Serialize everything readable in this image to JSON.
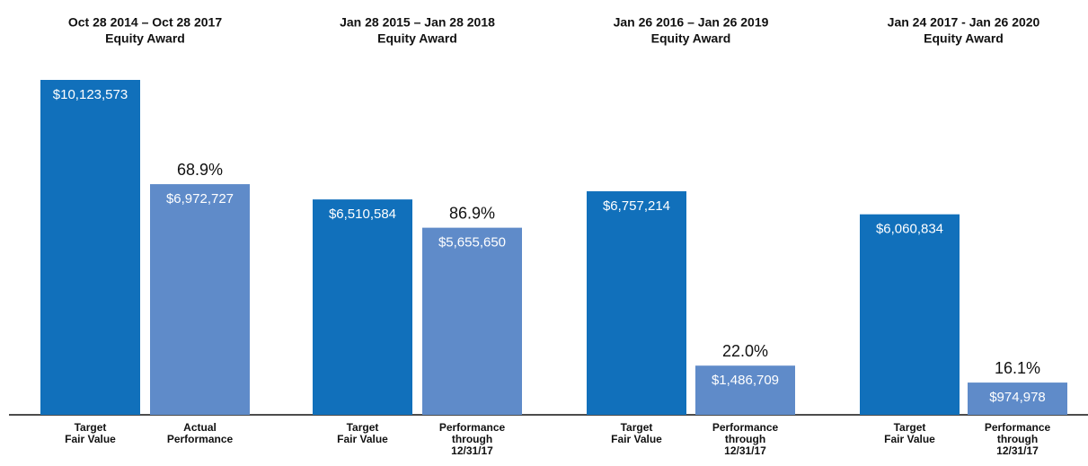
{
  "chart_data": [
    {
      "type": "bar",
      "title": [
        "Oct 28 2014 – Oct 28 2017",
        "Equity Award"
      ],
      "categories": [
        [
          "Target",
          "Fair Value"
        ],
        [
          "Actual",
          "Performance"
        ]
      ],
      "values": [
        10123573,
        6972727
      ],
      "value_labels": [
        "$10,123,573",
        "$6,972,727"
      ],
      "colors": [
        "#1170bb",
        "#5f8bc9"
      ],
      "percent": {
        "value": 68.9,
        "label": "68.9%"
      }
    },
    {
      "type": "bar",
      "title": [
        "Jan 28 2015 – Jan 28 2018",
        "Equity Award"
      ],
      "categories": [
        [
          "Target",
          "Fair Value"
        ],
        [
          "Performance",
          "through",
          "12/31/17"
        ]
      ],
      "values": [
        6510584,
        5655650
      ],
      "value_labels": [
        "$6,510,584",
        "$5,655,650"
      ],
      "colors": [
        "#1170bb",
        "#5f8bc9"
      ],
      "percent": {
        "value": 86.9,
        "label": "86.9%"
      }
    },
    {
      "type": "bar",
      "title": [
        "Jan 26 2016 – Jan 26 2019",
        "Equity Award"
      ],
      "categories": [
        [
          "Target",
          "Fair Value"
        ],
        [
          "Performance",
          "through",
          "12/31/17"
        ]
      ],
      "values": [
        6757214,
        1486709
      ],
      "value_labels": [
        "$6,757,214",
        "$1,486,709"
      ],
      "colors": [
        "#1170bb",
        "#5f8bc9"
      ],
      "percent": {
        "value": 22.0,
        "label": "22.0%"
      }
    },
    {
      "type": "bar",
      "title": [
        "Jan 24 2017 - Jan 26 2020",
        "Equity Award"
      ],
      "categories": [
        [
          "Target",
          "Fair Value"
        ],
        [
          "Performance",
          "through",
          "12/31/17"
        ]
      ],
      "values": [
        6060834,
        974978
      ],
      "value_labels": [
        "$6,060,834",
        "$974,978"
      ],
      "colors": [
        "#1170bb",
        "#5f8bc9"
      ],
      "percent": {
        "value": 16.1,
        "label": "16.1%"
      }
    }
  ]
}
